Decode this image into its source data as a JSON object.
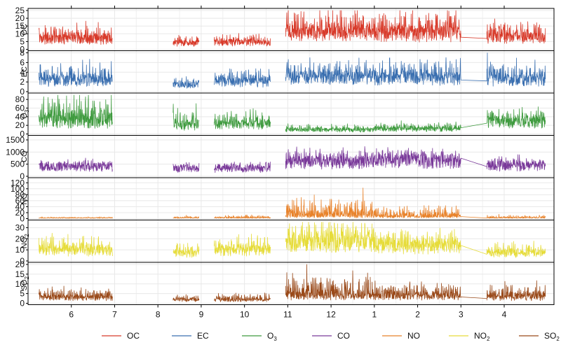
{
  "chart_data": {
    "type": "line",
    "x_axis": {
      "labels": [
        "6",
        "7",
        "8",
        "9",
        "10",
        "11",
        "12",
        "1",
        "2",
        "3",
        "4"
      ]
    },
    "grid": true,
    "legend": {
      "placement": "bottom"
    },
    "panels": [
      {
        "key": "OC",
        "label": "OC",
        "label_main": "OC",
        "label_sub": "",
        "color": "#d83a2a",
        "ylim": [
          0,
          25
        ],
        "ticks": [
          "0",
          "5",
          "10",
          "15",
          "20",
          "25"
        ],
        "tick_values": [
          0,
          5,
          10,
          15,
          20,
          25
        ],
        "segments": [
          {
            "start": 5.25,
            "end": 6.95,
            "base": 6,
            "amp": 7
          },
          {
            "start": 8.35,
            "end": 8.95,
            "base": 3.5,
            "amp": 4
          },
          {
            "start": 9.3,
            "end": 10.6,
            "base": 4,
            "amp": 4
          },
          {
            "start": 10.95,
            "end": 13.0,
            "base": 9,
            "amp": 12
          },
          {
            "start": 13.0,
            "end": 15.0,
            "base": 9,
            "amp": 12
          },
          {
            "start": 15.6,
            "end": 16.95,
            "base": 7,
            "amp": 8
          }
        ]
      },
      {
        "key": "EC",
        "label": "EC",
        "label_main": "EC",
        "label_sub": "",
        "color": "#3a6fb0",
        "ylim": [
          0,
          8
        ],
        "ticks": [
          "0",
          "2",
          "4",
          "6",
          "8"
        ],
        "tick_values": [
          0,
          2,
          4,
          6,
          8
        ],
        "segments": [
          {
            "start": 5.25,
            "end": 6.95,
            "base": 2,
            "amp": 3
          },
          {
            "start": 8.35,
            "end": 8.95,
            "base": 1.3,
            "amp": 1
          },
          {
            "start": 9.3,
            "end": 10.6,
            "base": 1.8,
            "amp": 2
          },
          {
            "start": 10.95,
            "end": 13.0,
            "base": 2.5,
            "amp": 3
          },
          {
            "start": 13.0,
            "end": 15.0,
            "base": 2.5,
            "amp": 3
          },
          {
            "start": 15.6,
            "end": 16.95,
            "base": 2.2,
            "amp": 3
          }
        ]
      },
      {
        "key": "O3",
        "label": "O3",
        "label_main": "O",
        "label_sub": "3",
        "color": "#3f9b3f",
        "ylim": [
          0,
          90
        ],
        "ticks": [
          "0",
          "20",
          "40",
          "60",
          "80"
        ],
        "tick_values": [
          0,
          20,
          40,
          60,
          80
        ],
        "segments": [
          {
            "start": 5.25,
            "end": 6.95,
            "base": 25,
            "amp": 50
          },
          {
            "start": 8.35,
            "end": 8.95,
            "base": 15,
            "amp": 40
          },
          {
            "start": 9.3,
            "end": 10.6,
            "base": 20,
            "amp": 25
          },
          {
            "start": 10.95,
            "end": 13.0,
            "base": 8,
            "amp": 10
          },
          {
            "start": 13.0,
            "end": 15.0,
            "base": 10,
            "amp": 12
          },
          {
            "start": 15.6,
            "end": 16.95,
            "base": 25,
            "amp": 25
          }
        ]
      },
      {
        "key": "CO",
        "label": "CO",
        "label_main": "CO",
        "label_sub": "",
        "color": "#7a3a9a",
        "ylim": [
          0,
          1600
        ],
        "ticks": [
          "0",
          "500",
          "1000",
          "1500"
        ],
        "tick_values": [
          0,
          500,
          1000,
          1500
        ],
        "segments": [
          {
            "start": 5.25,
            "end": 6.95,
            "base": 380,
            "amp": 150
          },
          {
            "start": 8.35,
            "end": 8.95,
            "base": 300,
            "amp": 150
          },
          {
            "start": 9.3,
            "end": 10.6,
            "base": 300,
            "amp": 200
          },
          {
            "start": 10.95,
            "end": 13.0,
            "base": 550,
            "amp": 400
          },
          {
            "start": 13.0,
            "end": 15.0,
            "base": 600,
            "amp": 400
          },
          {
            "start": 15.6,
            "end": 16.95,
            "base": 400,
            "amp": 250
          }
        ]
      },
      {
        "key": "NO",
        "label": "NO",
        "label_main": "NO",
        "label_sub": "",
        "color": "#e8822a",
        "ylim": [
          0,
          130
        ],
        "ticks": [
          "0",
          "20",
          "40",
          "60",
          "80",
          "100",
          "120"
        ],
        "tick_values": [
          0,
          20,
          40,
          60,
          80,
          100,
          120
        ],
        "segments": [
          {
            "start": 5.25,
            "end": 6.95,
            "base": 2,
            "amp": 3
          },
          {
            "start": 8.35,
            "end": 8.95,
            "base": 2,
            "amp": 5
          },
          {
            "start": 9.3,
            "end": 10.6,
            "base": 2,
            "amp": 8
          },
          {
            "start": 10.95,
            "end": 13.0,
            "base": 5,
            "amp": 50
          },
          {
            "start": 13.0,
            "end": 15.0,
            "base": 4,
            "amp": 30
          },
          {
            "start": 15.6,
            "end": 16.95,
            "base": 2,
            "amp": 8
          }
        ]
      },
      {
        "key": "NO2",
        "label": "NO2",
        "label_main": "NO",
        "label_sub": "2",
        "color": "#e6dc3a",
        "ylim": [
          0,
          35
        ],
        "ticks": [
          "0",
          "10",
          "20",
          "30"
        ],
        "tick_values": [
          0,
          10,
          20,
          30
        ],
        "segments": [
          {
            "start": 5.25,
            "end": 6.95,
            "base": 8,
            "amp": 12
          },
          {
            "start": 8.35,
            "end": 8.95,
            "base": 6,
            "amp": 10
          },
          {
            "start": 9.3,
            "end": 10.6,
            "base": 8,
            "amp": 10
          },
          {
            "start": 10.95,
            "end": 13.0,
            "base": 15,
            "amp": 15
          },
          {
            "start": 13.0,
            "end": 15.0,
            "base": 12,
            "amp": 12
          },
          {
            "start": 15.6,
            "end": 16.95,
            "base": 6,
            "amp": 8
          }
        ]
      },
      {
        "key": "SO2",
        "label": "SO2",
        "label_main": "SO",
        "label_sub": "2",
        "color": "#9a4a1a",
        "ylim": [
          0,
          20
        ],
        "ticks": [
          "0",
          "5",
          "10",
          "15",
          "20"
        ],
        "tick_values": [
          0,
          5,
          10,
          15,
          20
        ],
        "segments": [
          {
            "start": 5.25,
            "end": 6.95,
            "base": 2.5,
            "amp": 4
          },
          {
            "start": 8.35,
            "end": 8.95,
            "base": 1.5,
            "amp": 2
          },
          {
            "start": 9.3,
            "end": 10.6,
            "base": 1.5,
            "amp": 2.5
          },
          {
            "start": 10.95,
            "end": 13.0,
            "base": 3,
            "amp": 9
          },
          {
            "start": 13.0,
            "end": 15.0,
            "base": 3,
            "amp": 6
          },
          {
            "start": 15.6,
            "end": 16.95,
            "base": 2.5,
            "amp": 6
          }
        ]
      }
    ]
  }
}
